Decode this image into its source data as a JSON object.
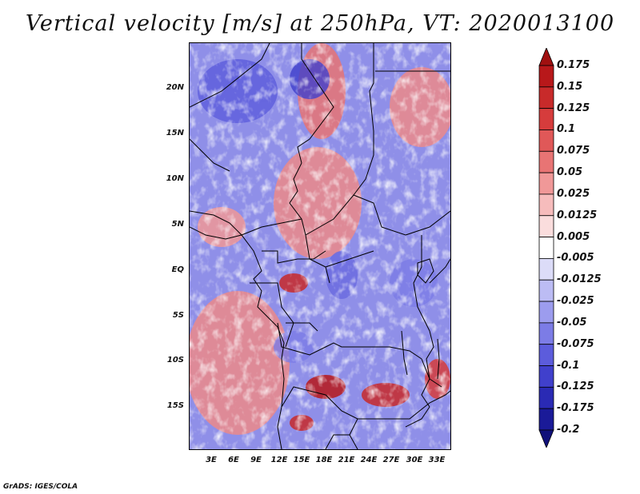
{
  "title": "Vertical velocity [m/s] at 250hPa, VT: 2020013100",
  "credit": "GrADS: IGES/COLA",
  "map": {
    "y_axis_labels": [
      "20N",
      "15N",
      "10N",
      "5N",
      "EQ",
      "5S",
      "10S",
      "15S"
    ],
    "x_axis_labels": [
      "3E",
      "6E",
      "9E",
      "12E",
      "15E",
      "18E",
      "21E",
      "24E",
      "27E",
      "30E",
      "33E"
    ]
  },
  "colorbar": {
    "labels": [
      "0.175",
      "0.15",
      "0.125",
      "0.1",
      "0.075",
      "0.05",
      "0.025",
      "0.0125",
      "0.005",
      "-0.005",
      "-0.0125",
      "-0.025",
      "-0.05",
      "-0.075",
      "-0.1",
      "-0.125",
      "-0.175",
      "-0.2"
    ],
    "colors": [
      "#a01010",
      "#b8181a",
      "#c82a2a",
      "#d63c3c",
      "#e05858",
      "#e87474",
      "#f09898",
      "#f6bcbc",
      "#fadddd",
      "#ffffff",
      "#dcdcf8",
      "#bcbcf4",
      "#9c9cee",
      "#7c7ce6",
      "#5c5cdc",
      "#4040cc",
      "#2a2ab4",
      "#1a1a98",
      "#10107a"
    ]
  }
}
